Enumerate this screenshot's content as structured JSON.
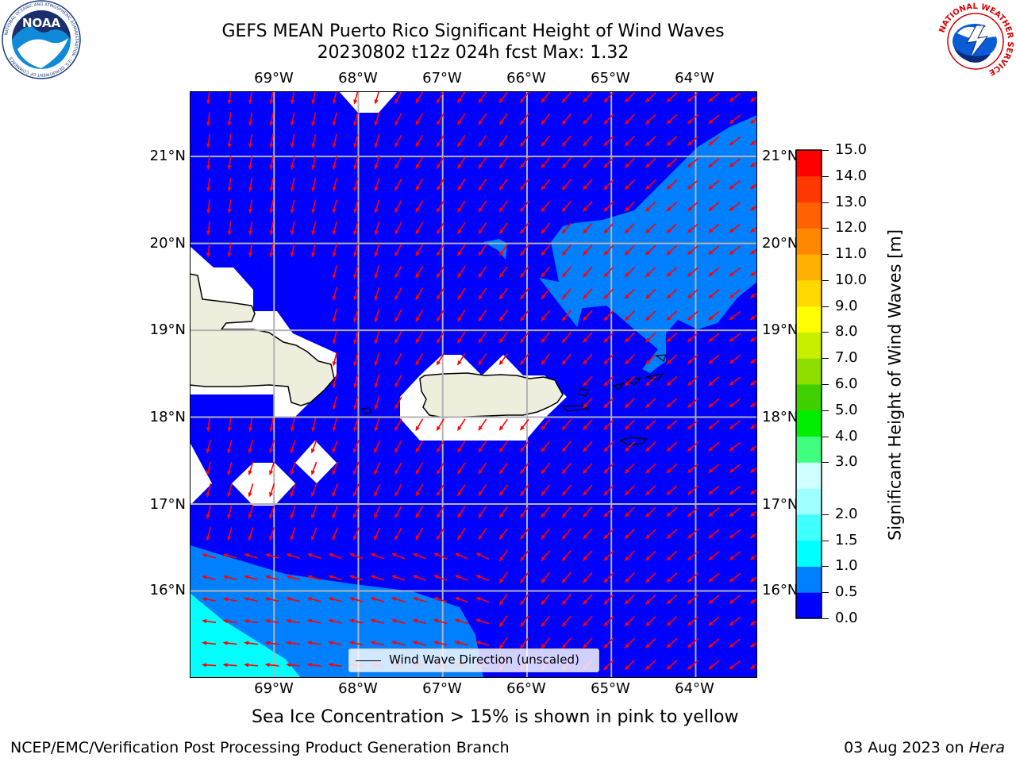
{
  "title": {
    "line1": "GEFS MEAN Puerto Rico Significant Height of Wind Waves",
    "line2": "20230802 t12z 024h fcst   Max: 1.32"
  },
  "logos": {
    "left": {
      "icon": "noaa-logo",
      "text": "NOAA",
      "ring_text": "NATIONAL OCEANIC AND ATMOSPHERIC ADMINISTRATION · U.S. DEPARTMENT OF COMMERCE"
    },
    "right": {
      "icon": "national-weather-service-logo",
      "ring_text": "NATIONAL WEATHER SERVICE"
    }
  },
  "map": {
    "lon_labels": [
      "69°W",
      "68°W",
      "67°W",
      "66°W",
      "65°W",
      "64°W"
    ],
    "lat_labels": [
      "21°N",
      "20°N",
      "19°N",
      "18°N",
      "17°N",
      "16°N"
    ],
    "lon_range": [
      -70.0,
      -63.27
    ],
    "lat_range": [
      15.0,
      21.75
    ],
    "arrow_color": "#ff0000",
    "ocean_color": "#0000ff",
    "land_color": "#eeeedd",
    "legend_label": "Wind Wave Direction (unscaled)"
  },
  "colorbar": {
    "label": "Significant Height of Wind Waves [m]",
    "ticks": [
      "15.0",
      "14.0",
      "13.0",
      "12.0",
      "11.0",
      "10.0",
      "9.0",
      "8.0",
      "7.0",
      "6.0",
      "5.0",
      "4.0",
      "3.0",
      "2.0",
      "1.5",
      "1.0",
      "0.5",
      "0.0"
    ],
    "levels": [
      0.0,
      0.5,
      1.0,
      1.5,
      2.0,
      2.5,
      3.0,
      4.0,
      5.0,
      6.0,
      7.0,
      8.0,
      9.0,
      10.0,
      11.0,
      12.0,
      13.0,
      14.0,
      15.0
    ],
    "colors": [
      "#0000ff",
      "#0080ff",
      "#00ffff",
      "#40ffff",
      "#a0ffff",
      "#d0ffff",
      "#40ff80",
      "#00ee00",
      "#40d000",
      "#90dd00",
      "#c8ee00",
      "#ffff00",
      "#ffd800",
      "#ffb000",
      "#ff8800",
      "#ff6000",
      "#ff3800",
      "#ff0000"
    ]
  },
  "footnote": "Sea Ice Concentration > 15% is shown in pink to yellow",
  "footer": {
    "left": "NCEP/EMC/Verification Post Processing Product Generation Branch",
    "right_date": "03 Aug 2023 on",
    "right_host": "Hera"
  }
}
